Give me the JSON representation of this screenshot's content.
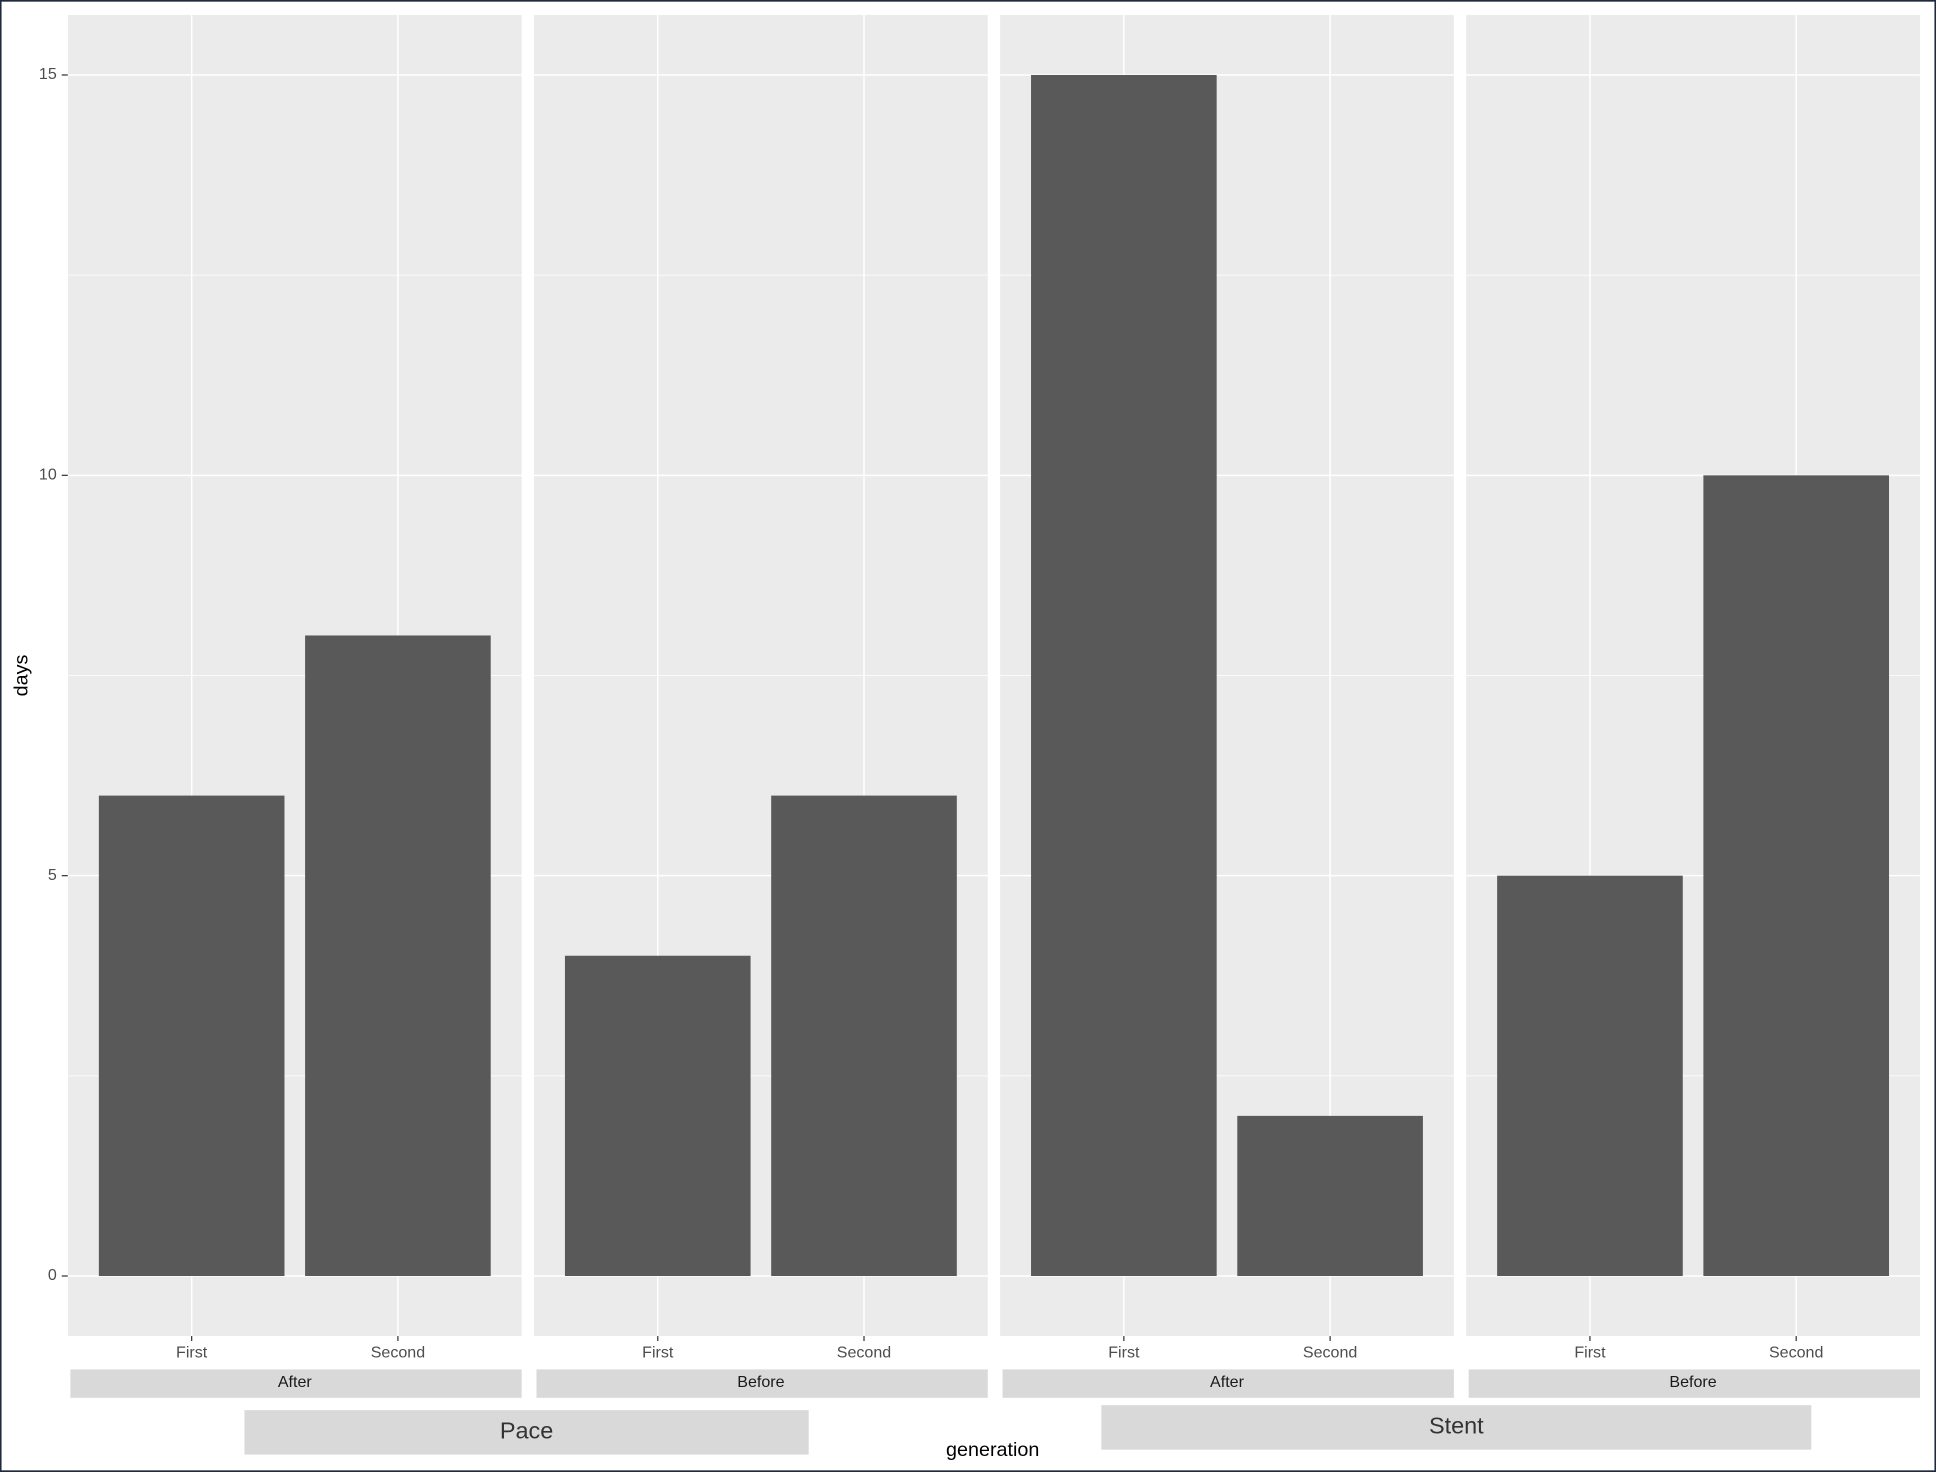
{
  "chart_data": {
    "type": "bar",
    "y_label": "days",
    "x_label": "generation",
    "ylim": [
      -0.75,
      15.75
    ],
    "yticks": [
      0,
      5,
      10,
      15
    ],
    "grid": true,
    "color": "#595959",
    "groups": [
      {
        "name": "Pace",
        "panels": [
          {
            "strip": "After",
            "categories": [
              "First",
              "Second"
            ],
            "values": [
              6,
              8
            ]
          },
          {
            "strip": "Before",
            "categories": [
              "First",
              "Second"
            ],
            "values": [
              4,
              6
            ]
          }
        ]
      },
      {
        "name": "Stent",
        "panels": [
          {
            "strip": "After",
            "categories": [
              "First",
              "Second"
            ],
            "values": [
              15,
              2
            ]
          },
          {
            "strip": "Before",
            "categories": [
              "First",
              "Second"
            ],
            "values": [
              5,
              10
            ]
          }
        ]
      }
    ]
  }
}
